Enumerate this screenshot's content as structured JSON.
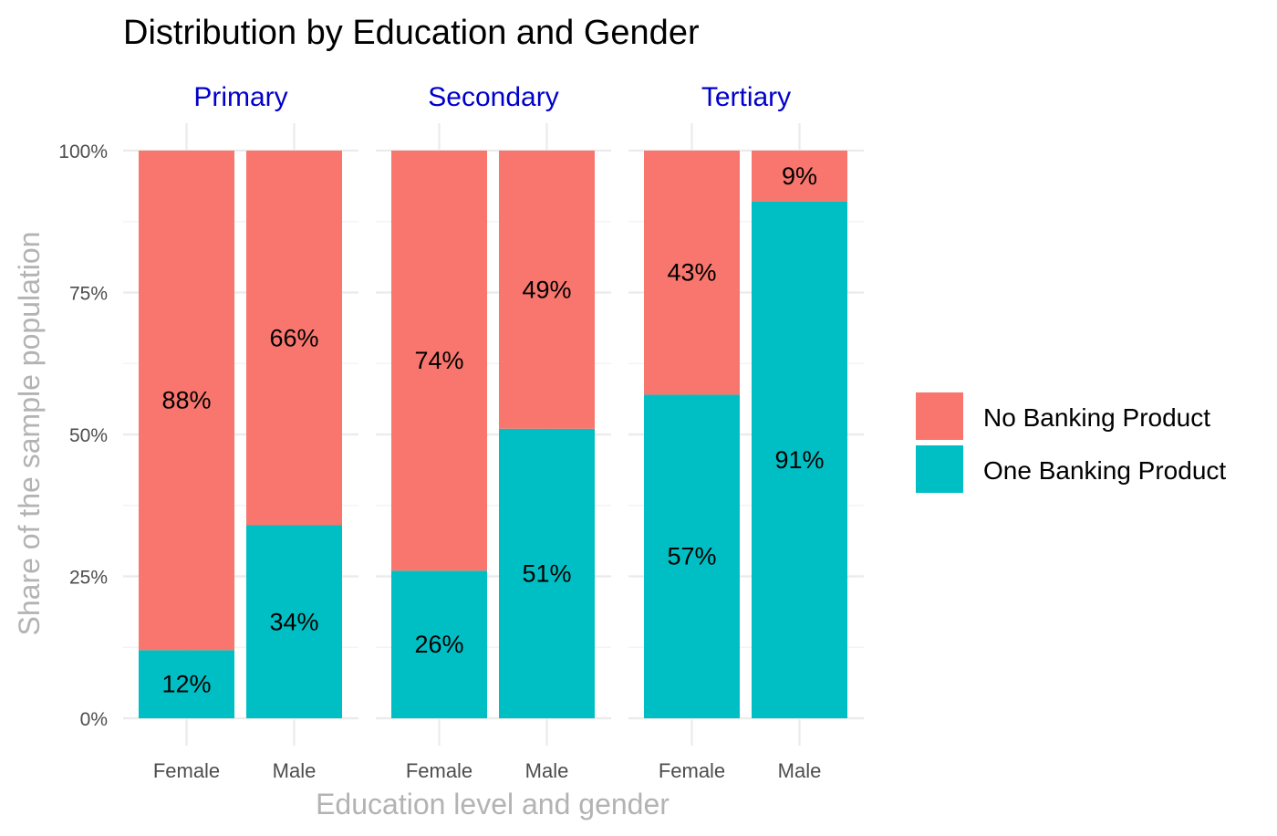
{
  "chart_data": {
    "type": "bar",
    "stacked": true,
    "title": "Distribution by Education and Gender",
    "xlabel": "Education level and gender",
    "ylabel": "Share of the sample population",
    "ylim": [
      0,
      100
    ],
    "yticks": [
      "0%",
      "25%",
      "50%",
      "75%",
      "100%"
    ],
    "yticks_values": [
      0,
      25,
      50,
      75,
      100
    ],
    "facets": [
      "Primary",
      "Secondary",
      "Tertiary"
    ],
    "categories": [
      "Female",
      "Male"
    ],
    "series": [
      {
        "name": "No Banking Product",
        "color": "#F8766D",
        "values": [
          [
            88,
            66
          ],
          [
            74,
            49
          ],
          [
            43,
            9
          ]
        ],
        "labels": [
          [
            "88%",
            "66%"
          ],
          [
            "74%",
            "49%"
          ],
          [
            "43%",
            "9%"
          ]
        ]
      },
      {
        "name": "One Banking Product",
        "color": "#00BFC4",
        "values": [
          [
            12,
            34
          ],
          [
            26,
            51
          ],
          [
            57,
            91
          ]
        ],
        "labels": [
          [
            "12%",
            "34%"
          ],
          [
            "26%",
            "51%"
          ],
          [
            "57%",
            "91%"
          ]
        ]
      }
    ],
    "legend": "right",
    "grid": true
  }
}
